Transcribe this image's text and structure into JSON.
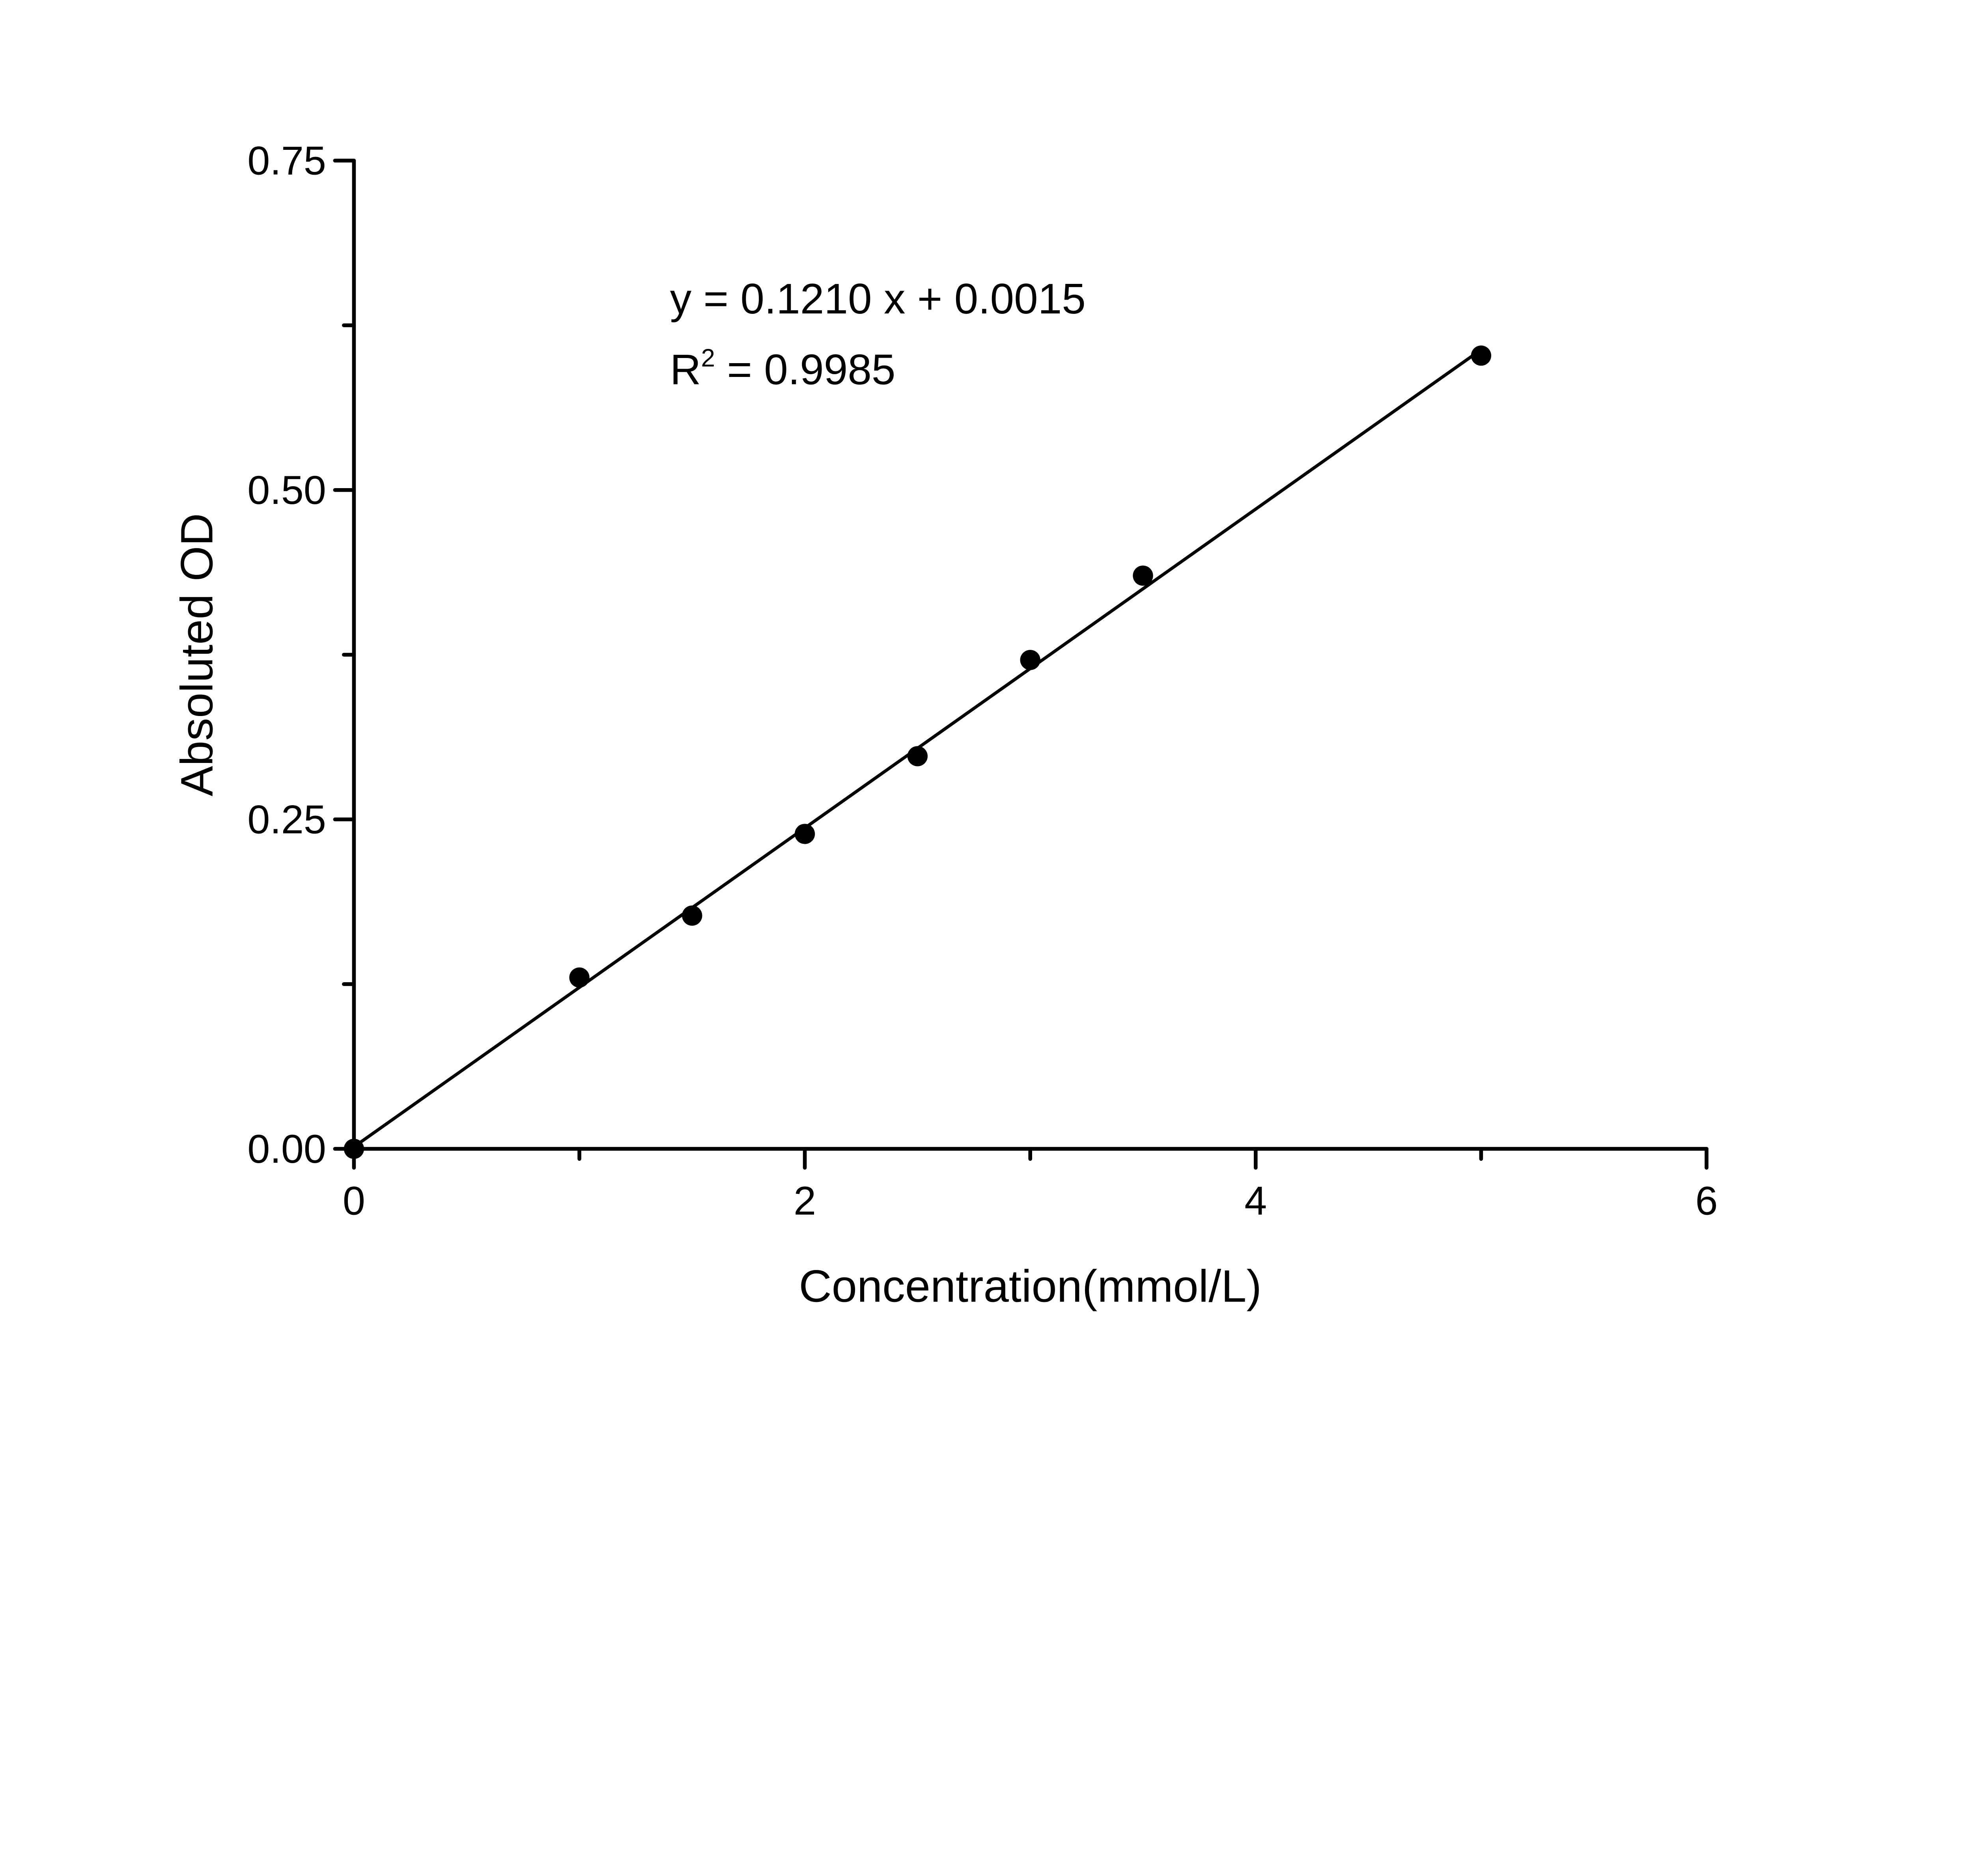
{
  "chart_data": {
    "type": "scatter",
    "title": "",
    "xlabel": "Concentration(mmol/L)",
    "ylabel": "Absoluted OD",
    "xlim": [
      0,
      6
    ],
    "ylim": [
      0,
      0.75
    ],
    "x_ticks": [
      0,
      2,
      4,
      6
    ],
    "x_tick_labels": [
      "0",
      "2",
      "4",
      "6"
    ],
    "x_minor_ticks": [
      1,
      3,
      5
    ],
    "y_ticks": [
      0,
      0.25,
      0.5,
      0.75
    ],
    "y_tick_labels": [
      "0.00",
      "0.25",
      "0.50",
      "0.75"
    ],
    "y_minor_ticks": [
      0.125,
      0.375,
      0.625
    ],
    "grid": false,
    "series": [
      {
        "x": [
          0,
          1,
          1.5,
          2,
          2.5,
          3,
          3.5,
          5
        ],
        "y": [
          0.0,
          0.13,
          0.177,
          0.239,
          0.298,
          0.371,
          0.435,
          0.602
        ],
        "color": "#000000",
        "marker": "circle"
      }
    ],
    "fit": {
      "slope": 0.121,
      "intercept": 0.0015,
      "x_range": [
        0,
        5
      ],
      "color": "#000000"
    },
    "annotations": {
      "equation": "y = 0.1210 x + 0.0015",
      "r2_prefix": "R",
      "r2_sup": "2",
      "r2_value": " = 0.9985"
    }
  }
}
